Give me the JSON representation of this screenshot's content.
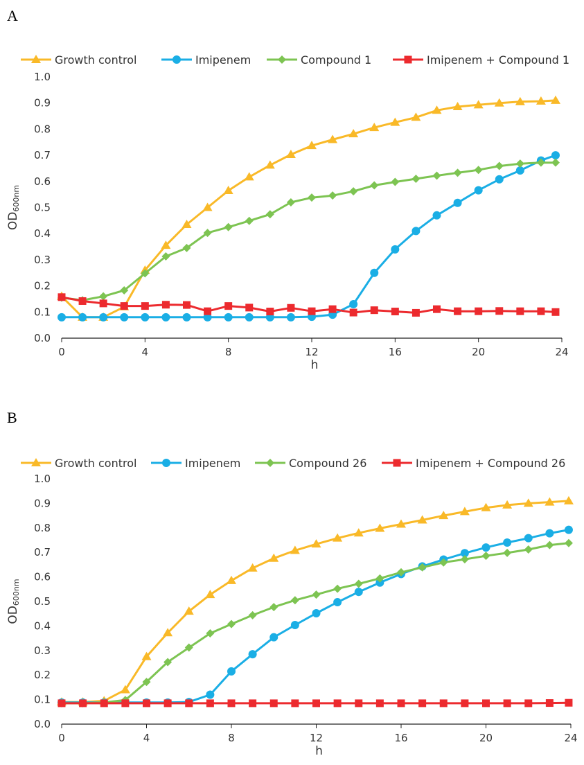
{
  "panels": [
    {
      "letter": "A",
      "chart_data": {
        "type": "line",
        "xlabel": "h",
        "ylabel": "OD",
        "ylabel_sub": "600nm",
        "xlim": [
          0,
          24
        ],
        "ylim": [
          0,
          1.0
        ],
        "xticks": [
          0,
          4,
          8,
          12,
          16,
          20,
          24
        ],
        "yticks": [
          0.0,
          0.1,
          0.2,
          0.3,
          0.4,
          0.5,
          0.6,
          0.7,
          0.8,
          0.9,
          1.0
        ],
        "ytick_labels": [
          "0.0",
          "0.1",
          "0.2",
          "0.3",
          "0.4",
          "0.5",
          "0.6",
          "0.7",
          "0.8",
          "0.9",
          "1.0"
        ],
        "grid": false,
        "legend_position": "top",
        "x": [
          0,
          1,
          2,
          3,
          4,
          5,
          6,
          7,
          8,
          9,
          10,
          11,
          12,
          13,
          14,
          15,
          16,
          17,
          18,
          19,
          20,
          21,
          22,
          23,
          23.7
        ],
        "series": [
          {
            "name": "Growth control",
            "color": "#F9B928",
            "marker": "triangle",
            "values": [
              0.16,
              0.08,
              0.08,
              0.12,
              0.26,
              0.355,
              0.435,
              0.5,
              0.565,
              0.617,
              0.662,
              0.703,
              0.737,
              0.76,
              0.782,
              0.806,
              0.826,
              0.845,
              0.872,
              0.886,
              0.893,
              0.9,
              0.905,
              0.907,
              0.91
            ]
          },
          {
            "name": "Imipenem",
            "color": "#1AAEE5",
            "marker": "circle",
            "values": [
              0.08,
              0.08,
              0.08,
              0.08,
              0.08,
              0.08,
              0.08,
              0.08,
              0.08,
              0.08,
              0.08,
              0.08,
              0.082,
              0.09,
              0.13,
              0.25,
              0.34,
              0.41,
              0.47,
              0.518,
              0.566,
              0.608,
              0.642,
              0.68,
              0.7
            ]
          },
          {
            "name": "Compound 1",
            "color": "#7DC452",
            "marker": "diamond",
            "values": [
              0.155,
              0.145,
              0.16,
              0.183,
              0.248,
              0.313,
              0.345,
              0.403,
              0.425,
              0.449,
              0.474,
              0.52,
              0.538,
              0.546,
              0.562,
              0.585,
              0.598,
              0.61,
              0.622,
              0.633,
              0.644,
              0.659,
              0.668,
              0.672,
              0.672
            ]
          },
          {
            "name": "Imipenem + Compound 1",
            "color": "#EC2A2E",
            "marker": "square",
            "values": [
              0.157,
              0.142,
              0.133,
              0.123,
              0.123,
              0.128,
              0.127,
              0.103,
              0.123,
              0.117,
              0.102,
              0.116,
              0.103,
              0.111,
              0.098,
              0.107,
              0.102,
              0.097,
              0.111,
              0.103,
              0.103,
              0.104,
              0.103,
              0.103,
              0.1
            ]
          }
        ]
      }
    },
    {
      "letter": "B",
      "chart_data": {
        "type": "line",
        "xlabel": "h",
        "ylabel": "OD",
        "ylabel_sub": "600nm",
        "xlim": [
          0,
          24
        ],
        "ylim": [
          0,
          1.0
        ],
        "xticks": [
          0,
          4,
          8,
          12,
          16,
          20,
          24
        ],
        "yticks": [
          0.0,
          0.1,
          0.2,
          0.3,
          0.4,
          0.5,
          0.6,
          0.7,
          0.8,
          0.9,
          1.0
        ],
        "ytick_labels": [
          "0.0",
          "0.1",
          "0.2",
          "0.3",
          "0.4",
          "0.5",
          "0.6",
          "0.7",
          "0.8",
          "0.9",
          "1.0"
        ],
        "grid": false,
        "legend_position": "top",
        "x": [
          0,
          1,
          2,
          3,
          4,
          5,
          6,
          7,
          8,
          9,
          10,
          11,
          12,
          13,
          14,
          15,
          16,
          17,
          18,
          19,
          20,
          21,
          22,
          23,
          23.9
        ],
        "series": [
          {
            "name": "Growth control",
            "color": "#F9B928",
            "marker": "triangle",
            "values": [
              0.09,
              0.09,
              0.095,
              0.14,
              0.275,
              0.372,
              0.46,
              0.528,
              0.585,
              0.636,
              0.676,
              0.708,
              0.734,
              0.758,
              0.779,
              0.798,
              0.815,
              0.832,
              0.85,
              0.866,
              0.882,
              0.893,
              0.9,
              0.905,
              0.91
            ]
          },
          {
            "name": "Imipenem",
            "color": "#1AAEE5",
            "marker": "circle",
            "values": [
              0.088,
              0.088,
              0.088,
              0.088,
              0.088,
              0.088,
              0.09,
              0.12,
              0.215,
              0.285,
              0.354,
              0.404,
              0.452,
              0.497,
              0.539,
              0.577,
              0.612,
              0.643,
              0.671,
              0.697,
              0.72,
              0.74,
              0.758,
              0.778,
              0.792
            ]
          },
          {
            "name": "Compound 26",
            "color": "#7DC452",
            "marker": "diamond",
            "values": [
              0.085,
              0.085,
              0.088,
              0.098,
              0.172,
              0.253,
              0.312,
              0.37,
              0.408,
              0.444,
              0.477,
              0.505,
              0.528,
              0.552,
              0.572,
              0.594,
              0.619,
              0.639,
              0.659,
              0.672,
              0.686,
              0.698,
              0.712,
              0.73,
              0.738
            ]
          },
          {
            "name": "Imipenem + Compound 26",
            "color": "#EC2A2E",
            "marker": "square",
            "values": [
              0.085,
              0.085,
              0.085,
              0.085,
              0.085,
              0.085,
              0.085,
              0.085,
              0.085,
              0.085,
              0.085,
              0.085,
              0.085,
              0.085,
              0.085,
              0.085,
              0.085,
              0.085,
              0.085,
              0.085,
              0.085,
              0.085,
              0.085,
              0.086,
              0.087
            ]
          }
        ]
      }
    }
  ]
}
